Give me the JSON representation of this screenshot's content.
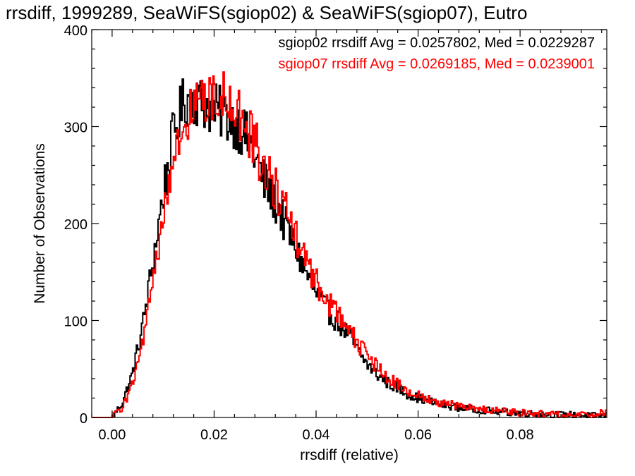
{
  "chart_data": {
    "type": "line",
    "title": "rrsdiff, 1999289, SeaWiFS(sgiop02) & SeaWiFS(sgiop07), Eutro",
    "xlabel": "rrsdiff (relative)",
    "ylabel": "Number of Observations",
    "xlim": [
      -0.004,
      0.097
    ],
    "ylim": [
      0,
      400
    ],
    "x_ticks": [
      0.0,
      0.02,
      0.04,
      0.06,
      0.08
    ],
    "x_tick_labels": [
      "0.00",
      "0.02",
      "0.04",
      "0.06",
      "0.08"
    ],
    "y_ticks": [
      0,
      100,
      200,
      300,
      400
    ],
    "y_tick_labels": [
      "0",
      "100",
      "200",
      "300",
      "400"
    ],
    "bin_width": 0.00025,
    "grid": false,
    "annotations": [
      {
        "text": "sgiop02 rrsdiff Avg = 0.0257802, Med = 0.0229287",
        "color": "#000000"
      },
      {
        "text": "sgiop07 rrsdiff Avg = 0.0269185, Med = 0.0239001",
        "color": "#ff0000"
      }
    ],
    "series": [
      {
        "color": "#000000",
        "points": [
          [
            -0.004,
            0
          ],
          [
            0.0,
            0
          ],
          [
            0.002,
            15
          ],
          [
            0.004,
            45
          ],
          [
            0.006,
            95
          ],
          [
            0.008,
            160
          ],
          [
            0.01,
            230
          ],
          [
            0.012,
            290
          ],
          [
            0.014,
            325
          ],
          [
            0.016,
            330
          ],
          [
            0.018,
            322
          ],
          [
            0.02,
            318
          ],
          [
            0.022,
            312
          ],
          [
            0.024,
            305
          ],
          [
            0.026,
            292
          ],
          [
            0.028,
            270
          ],
          [
            0.03,
            240
          ],
          [
            0.032,
            222
          ],
          [
            0.034,
            198
          ],
          [
            0.036,
            175
          ],
          [
            0.038,
            150
          ],
          [
            0.04,
            128
          ],
          [
            0.042,
            112
          ],
          [
            0.044,
            100
          ],
          [
            0.046,
            88
          ],
          [
            0.048,
            70
          ],
          [
            0.05,
            55
          ],
          [
            0.052,
            44
          ],
          [
            0.054,
            36
          ],
          [
            0.056,
            30
          ],
          [
            0.058,
            24
          ],
          [
            0.06,
            20
          ],
          [
            0.062,
            17
          ],
          [
            0.064,
            14
          ],
          [
            0.066,
            12
          ],
          [
            0.068,
            10
          ],
          [
            0.07,
            9
          ],
          [
            0.072,
            8
          ],
          [
            0.074,
            7
          ],
          [
            0.076,
            6
          ],
          [
            0.078,
            5
          ],
          [
            0.08,
            5
          ],
          [
            0.082,
            4
          ],
          [
            0.084,
            4
          ],
          [
            0.086,
            3
          ],
          [
            0.088,
            3
          ],
          [
            0.09,
            3
          ],
          [
            0.092,
            2
          ],
          [
            0.094,
            2
          ],
          [
            0.096,
            2
          ]
        ]
      },
      {
        "color": "#ff0000",
        "points": [
          [
            -0.004,
            0
          ],
          [
            0.0,
            0
          ],
          [
            0.002,
            10
          ],
          [
            0.004,
            35
          ],
          [
            0.006,
            75
          ],
          [
            0.008,
            140
          ],
          [
            0.01,
            205
          ],
          [
            0.012,
            262
          ],
          [
            0.014,
            300
          ],
          [
            0.016,
            320
          ],
          [
            0.018,
            330
          ],
          [
            0.02,
            335
          ],
          [
            0.022,
            328
          ],
          [
            0.024,
            322
          ],
          [
            0.026,
            305
          ],
          [
            0.028,
            280
          ],
          [
            0.03,
            258
          ],
          [
            0.032,
            238
          ],
          [
            0.034,
            212
          ],
          [
            0.036,
            188
          ],
          [
            0.038,
            162
          ],
          [
            0.04,
            140
          ],
          [
            0.042,
            122
          ],
          [
            0.044,
            108
          ],
          [
            0.046,
            95
          ],
          [
            0.048,
            78
          ],
          [
            0.05,
            64
          ],
          [
            0.052,
            52
          ],
          [
            0.054,
            42
          ],
          [
            0.056,
            34
          ],
          [
            0.058,
            28
          ],
          [
            0.06,
            23
          ],
          [
            0.062,
            19
          ],
          [
            0.064,
            16
          ],
          [
            0.066,
            14
          ],
          [
            0.068,
            12
          ],
          [
            0.07,
            10
          ],
          [
            0.072,
            9
          ],
          [
            0.074,
            8
          ],
          [
            0.076,
            7
          ],
          [
            0.078,
            6
          ],
          [
            0.08,
            5
          ],
          [
            0.082,
            5
          ],
          [
            0.084,
            4
          ],
          [
            0.086,
            4
          ],
          [
            0.088,
            3
          ],
          [
            0.09,
            3
          ],
          [
            0.092,
            3
          ],
          [
            0.094,
            2
          ],
          [
            0.096,
            5
          ]
        ]
      }
    ]
  }
}
